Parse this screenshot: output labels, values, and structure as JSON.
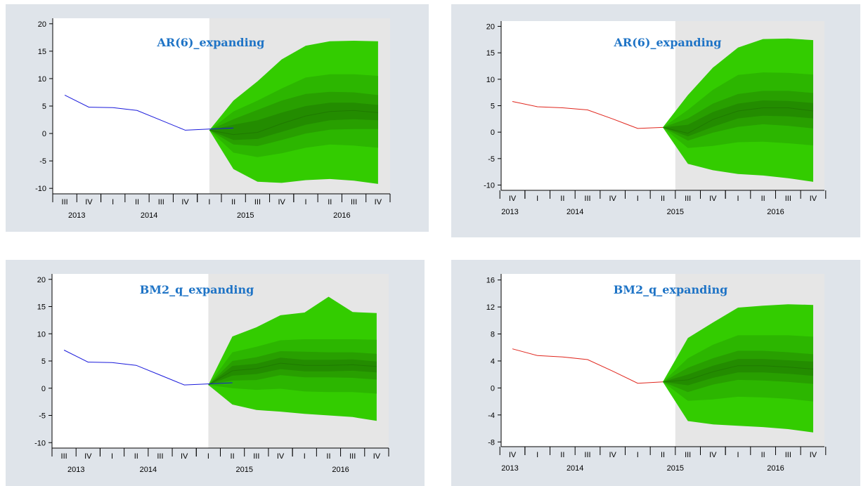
{
  "colors": {
    "panel_bg": "#dfe4ea",
    "forecast_shade": "#e6e6e6",
    "band_outer": "#33cc00",
    "band_2": "#2cb600",
    "band_3": "#289f00",
    "band_inner": "#238c00",
    "median": "#1f7a00",
    "actual_blue": "#1a1adb",
    "actual_red": "#e0261d",
    "title": "#1f74c6"
  },
  "chart_data": [
    {
      "type": "line",
      "title": "AR(6)_expanding",
      "quarters": [
        "III",
        "IV",
        "I",
        "II",
        "III",
        "IV",
        "I",
        "II",
        "III",
        "IV",
        "I",
        "II",
        "III",
        "IV"
      ],
      "years": [
        "2013",
        "2014",
        "2015",
        "2016"
      ],
      "ylim": [
        -11,
        21
      ],
      "yticks": [
        "-10",
        "-5",
        "0",
        "5",
        "10",
        "15",
        "20"
      ],
      "actual": {
        "x": [
          1,
          2,
          3,
          4,
          5,
          6,
          7,
          8
        ],
        "y": [
          7.0,
          4.8,
          4.7,
          4.2,
          2.4,
          0.6,
          0.8,
          1.0
        ]
      },
      "forecast": {
        "x": [
          7,
          8,
          9,
          10,
          11,
          12,
          13,
          14
        ],
        "median": [
          0.6,
          -0.2,
          0.2,
          1.8,
          3.2,
          4.0,
          4.2,
          3.8
        ],
        "bands": [
          {
            "upper": [
              0.6,
              6.0,
              9.5,
              13.5,
              16.0,
              16.8,
              16.9,
              16.8
            ],
            "lower": [
              0.6,
              -6.5,
              -8.8,
              -9.0,
              -8.5,
              -8.3,
              -8.6,
              -9.2
            ]
          },
          {
            "upper": [
              0.6,
              4.0,
              6.0,
              8.2,
              10.2,
              10.8,
              10.8,
              10.5
            ],
            "lower": [
              0.6,
              -3.5,
              -4.3,
              -3.6,
              -2.6,
              -2.0,
              -2.2,
              -2.6
            ]
          },
          {
            "upper": [
              0.6,
              2.6,
              4.3,
              6.0,
              7.2,
              7.6,
              7.5,
              7.0
            ],
            "lower": [
              0.6,
              -2.0,
              -2.3,
              -1.2,
              0.0,
              0.7,
              0.8,
              0.8
            ]
          },
          {
            "upper": [
              0.6,
              1.6,
              2.4,
              3.8,
              5.0,
              5.6,
              5.6,
              5.2
            ],
            "lower": [
              0.6,
              -1.2,
              -1.0,
              0.3,
              1.6,
              2.4,
              2.6,
              2.4
            ]
          }
        ]
      }
    },
    {
      "type": "line",
      "title": "AR(6)_expanding",
      "quarters": [
        "IV",
        "I",
        "II",
        "III",
        "IV",
        "I",
        "II",
        "III",
        "IV",
        "I",
        "II",
        "III",
        "IV"
      ],
      "years": [
        "2013",
        "2014",
        "2015",
        "2016"
      ],
      "ylim": [
        -11,
        21
      ],
      "yticks": [
        "-10",
        "-5",
        "0",
        "5",
        "10",
        "15",
        "20"
      ],
      "actual": {
        "x": [
          1,
          2,
          3,
          4,
          5,
          6,
          7
        ],
        "y": [
          5.8,
          4.8,
          4.6,
          4.2,
          2.5,
          0.7,
          0.9
        ]
      },
      "forecast": {
        "x": [
          7,
          8,
          9,
          10,
          11,
          12,
          13
        ],
        "median": [
          0.9,
          -0.2,
          2.4,
          4.0,
          4.6,
          4.6,
          4.0
        ],
        "bands": [
          {
            "upper": [
              0.9,
              7.0,
              12.2,
              16.0,
              17.6,
              17.7,
              17.4
            ],
            "lower": [
              0.9,
              -6.0,
              -7.2,
              -7.9,
              -8.2,
              -8.7,
              -9.4
            ]
          },
          {
            "upper": [
              0.9,
              4.2,
              8.0,
              10.8,
              11.3,
              11.2,
              10.9
            ],
            "lower": [
              0.9,
              -3.0,
              -2.6,
              -1.9,
              -1.8,
              -2.1,
              -2.5
            ]
          },
          {
            "upper": [
              0.9,
              2.6,
              5.4,
              7.2,
              7.8,
              7.8,
              7.4
            ],
            "lower": [
              0.9,
              -1.6,
              -0.1,
              1.0,
              1.5,
              1.2,
              0.7
            ]
          },
          {
            "upper": [
              0.9,
              1.4,
              3.8,
              5.4,
              6.0,
              5.9,
              5.5
            ],
            "lower": [
              0.9,
              -0.8,
              1.0,
              2.6,
              3.1,
              3.0,
              2.6
            ]
          }
        ]
      }
    },
    {
      "type": "line",
      "title": "BM2_q_expanding",
      "quarters": [
        "III",
        "IV",
        "I",
        "II",
        "III",
        "IV",
        "I",
        "II",
        "III",
        "IV",
        "I",
        "II",
        "III",
        "IV"
      ],
      "years": [
        "2013",
        "2014",
        "2015",
        "2016"
      ],
      "ylim": [
        -11,
        21
      ],
      "yticks": [
        "-10",
        "-5",
        "0",
        "5",
        "10",
        "15",
        "20"
      ],
      "actual": {
        "x": [
          1,
          2,
          3,
          4,
          5,
          6,
          7,
          8
        ],
        "y": [
          7.0,
          4.8,
          4.7,
          4.2,
          2.4,
          0.6,
          0.8,
          1.0
        ]
      },
      "forecast": {
        "x": [
          7,
          8,
          9,
          10,
          11,
          12,
          13,
          14
        ],
        "median": [
          0.6,
          3.2,
          3.6,
          4.6,
          4.2,
          4.2,
          4.3,
          4.0
        ],
        "bands": [
          {
            "upper": [
              0.6,
              9.5,
              11.2,
              13.4,
              13.9,
              16.8,
              14.0,
              13.8
            ],
            "lower": [
              0.6,
              -3.0,
              -4.0,
              -4.3,
              -4.7,
              -5.0,
              -5.3,
              -6.0
            ]
          },
          {
            "upper": [
              0.6,
              6.6,
              7.6,
              8.8,
              9.0,
              9.0,
              9.0,
              8.9
            ],
            "lower": [
              0.6,
              0.0,
              -0.3,
              -0.1,
              -0.6,
              -0.7,
              -0.7,
              -1.0
            ]
          },
          {
            "upper": [
              0.6,
              5.0,
              5.7,
              6.8,
              6.7,
              6.6,
              6.6,
              6.3
            ],
            "lower": [
              0.6,
              1.4,
              1.5,
              2.4,
              2.0,
              2.0,
              1.9,
              1.6
            ]
          },
          {
            "upper": [
              0.6,
              4.1,
              4.5,
              5.6,
              5.2,
              5.2,
              5.3,
              4.9
            ],
            "lower": [
              0.6,
              2.3,
              2.6,
              3.5,
              3.1,
              3.1,
              3.2,
              2.9
            ]
          }
        ]
      }
    },
    {
      "type": "line",
      "title": "BM2_q_expanding",
      "quarters": [
        "IV",
        "I",
        "II",
        "III",
        "IV",
        "I",
        "II",
        "III",
        "IV",
        "I",
        "II",
        "III",
        "IV"
      ],
      "years": [
        "2013",
        "2014",
        "2015",
        "2016"
      ],
      "ylim": [
        -8.7,
        16.9
      ],
      "yticks": [
        "-8",
        "-4",
        "0",
        "4",
        "8",
        "12",
        "16"
      ],
      "actual": {
        "x": [
          1,
          2,
          3,
          4,
          5,
          6,
          7
        ],
        "y": [
          5.8,
          4.8,
          4.6,
          4.2,
          2.5,
          0.7,
          0.9
        ]
      },
      "forecast": {
        "x": [
          7,
          8,
          9,
          10,
          11,
          12,
          13
        ],
        "median": [
          0.9,
          1.2,
          2.4,
          3.3,
          3.3,
          3.1,
          2.8
        ],
        "bands": [
          {
            "upper": [
              0.9,
              7.4,
              9.7,
              11.9,
              12.2,
              12.4,
              12.3
            ],
            "lower": [
              0.9,
              -4.9,
              -5.4,
              -5.6,
              -5.8,
              -6.1,
              -6.6
            ]
          },
          {
            "upper": [
              0.9,
              4.4,
              6.4,
              7.8,
              7.8,
              7.8,
              7.6
            ],
            "lower": [
              0.9,
              -1.9,
              -1.7,
              -1.3,
              -1.4,
              -1.6,
              -2.0
            ]
          },
          {
            "upper": [
              0.9,
              3.0,
              4.4,
              5.5,
              5.5,
              5.3,
              5.0
            ],
            "lower": [
              0.9,
              -0.6,
              0.5,
              1.2,
              1.1,
              0.9,
              0.6
            ]
          },
          {
            "upper": [
              0.9,
              2.0,
              3.3,
              4.3,
              4.3,
              4.1,
              3.9
            ],
            "lower": [
              0.9,
              0.4,
              1.5,
              2.3,
              2.3,
              2.1,
              1.8
            ]
          }
        ]
      }
    }
  ]
}
